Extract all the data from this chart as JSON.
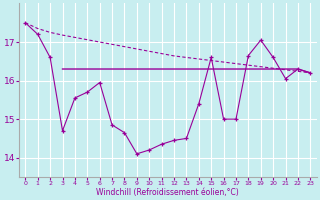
{
  "x": [
    0,
    1,
    2,
    3,
    4,
    5,
    6,
    7,
    8,
    9,
    10,
    11,
    12,
    13,
    14,
    15,
    16,
    17,
    18,
    19,
    20,
    21,
    22,
    23
  ],
  "line_main": [
    17.5,
    17.2,
    16.6,
    14.7,
    15.55,
    15.7,
    15.95,
    14.85,
    14.65,
    14.1,
    14.2,
    14.35,
    14.45,
    14.5,
    15.4,
    16.6,
    15.0,
    15.0,
    16.65,
    17.05,
    16.6,
    16.05,
    16.3,
    16.2
  ],
  "line_dashed": [
    17.5,
    17.35,
    17.25,
    17.18,
    17.12,
    17.06,
    17.0,
    16.94,
    16.88,
    16.82,
    16.76,
    16.7,
    16.64,
    16.6,
    16.56,
    16.52,
    16.48,
    16.44,
    16.4,
    16.36,
    16.32,
    16.28,
    16.24,
    16.2
  ],
  "line_solid_x": [
    3,
    4,
    5,
    6,
    7,
    8,
    9,
    10,
    11,
    12,
    13,
    14,
    15,
    16,
    17,
    18,
    19,
    20,
    21,
    22,
    23
  ],
  "line_solid_y": [
    16.3,
    16.3,
    16.3,
    16.3,
    16.3,
    16.3,
    16.3,
    16.3,
    16.3,
    16.3,
    16.3,
    16.3,
    16.3,
    16.3,
    16.3,
    16.3,
    16.3,
    16.3,
    16.3,
    16.3,
    16.2
  ],
  "ylim": [
    13.5,
    18.0
  ],
  "yticks": [
    14,
    15,
    16,
    17
  ],
  "xticks": [
    0,
    1,
    2,
    3,
    4,
    5,
    6,
    7,
    8,
    9,
    10,
    11,
    12,
    13,
    14,
    15,
    16,
    17,
    18,
    19,
    20,
    21,
    22,
    23
  ],
  "xlabel": "Windchill (Refroidissement éolien,°C)",
  "line_color": "#990099",
  "bg_color": "#c8eef0",
  "grid_color": "#ffffff"
}
